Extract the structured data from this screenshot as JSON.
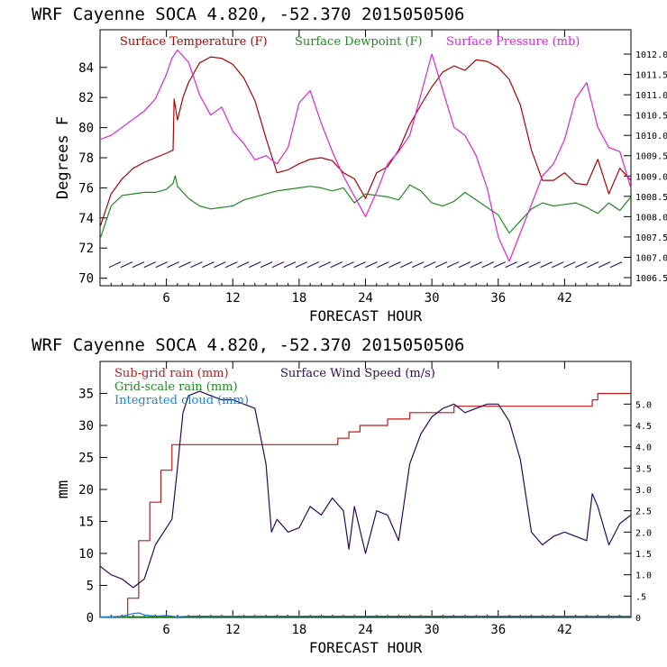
{
  "colors": {
    "temperature": "#b00000",
    "dewpoint": "#1e8a1e",
    "pressure": "#e020e0",
    "subgrid_rain": "#c01818",
    "gridscale_rain": "#1e8a1e",
    "cloud": "#1e7fd8",
    "wind": "#2a0a5a",
    "axis": "#000000"
  },
  "chart_data": [
    {
      "type": "line",
      "title": "WRF   Cayenne SOCA   4.820, -52.370  2015050506",
      "xlabel": "FORECAST HOUR",
      "ylabel": "Degrees F",
      "xlim": [
        0,
        48
      ],
      "ylim": [
        69.5,
        86.5
      ],
      "y2lim": [
        1006.3,
        1012.6
      ],
      "xticks": [
        6,
        12,
        18,
        24,
        30,
        36,
        42
      ],
      "xtick_labels": [
        "6",
        "12",
        "18",
        "24",
        "30",
        "36",
        "42"
      ],
      "yticks": [
        70,
        72,
        74,
        76,
        78,
        80,
        82,
        84
      ],
      "ytick_labels": [
        "70",
        "72",
        "74",
        "76",
        "78",
        "80",
        "82",
        "84"
      ],
      "y2ticks": [
        1006.5,
        1007.0,
        1007.5,
        1008.0,
        1008.5,
        1009.0,
        1009.5,
        1010.0,
        1010.5,
        1011.0,
        1011.5,
        1012.0
      ],
      "y2tick_labels": [
        "1006.5",
        "1007.0",
        "1007.5",
        "1008.0",
        "1008.5",
        "1009.0",
        "1009.5",
        "1010.0",
        "1010.5",
        "1011.0",
        "1011.5",
        "1012.0"
      ],
      "legend": [
        "Surface Temperature (F)",
        "Surface Dewpoint (F)",
        "Surface Pressure (mb)"
      ],
      "series": [
        {
          "name": "Surface Temperature (F)",
          "axis": "left",
          "x": [
            0,
            1,
            2,
            3,
            4,
            5,
            6,
            6.6,
            6.7,
            7,
            7.5,
            8,
            9,
            10,
            11,
            12,
            13,
            14,
            15,
            16,
            17,
            18,
            19,
            20,
            21,
            22,
            23,
            24,
            25,
            26,
            27,
            28,
            29,
            30,
            31,
            32,
            33,
            34,
            35,
            36,
            37,
            38,
            39,
            40,
            41,
            42,
            43,
            44,
            45,
            46,
            47,
            48
          ],
          "values": [
            73.4,
            75.6,
            76.6,
            77.3,
            77.7,
            78.0,
            78.3,
            78.5,
            81.9,
            80.5,
            82.0,
            83.0,
            84.3,
            84.7,
            84.6,
            84.2,
            83.3,
            81.8,
            79.3,
            77.0,
            77.2,
            77.6,
            77.9,
            78.0,
            77.8,
            77.0,
            76.6,
            75.3,
            77.0,
            77.4,
            78.5,
            80.2,
            81.5,
            82.7,
            83.7,
            84.1,
            83.8,
            84.5,
            84.4,
            84.0,
            83.2,
            81.5,
            78.5,
            76.5,
            76.5,
            77.0,
            76.3,
            76.2,
            77.9,
            75.6,
            77.3,
            76.5
          ]
        },
        {
          "name": "Surface Dewpoint (F)",
          "axis": "left",
          "x": [
            0,
            1,
            2,
            3,
            4,
            5,
            6,
            6.6,
            6.8,
            7,
            8,
            9,
            10,
            11,
            12,
            13,
            14,
            15,
            16,
            17,
            18,
            19,
            20,
            21,
            22,
            23,
            24,
            25,
            26,
            27,
            28,
            29,
            30,
            31,
            32,
            33,
            34,
            35,
            36,
            37,
            38,
            39,
            40,
            41,
            42,
            43,
            44,
            45,
            46,
            47,
            48
          ],
          "values": [
            72.6,
            74.8,
            75.5,
            75.6,
            75.7,
            75.7,
            75.9,
            76.3,
            76.8,
            76.1,
            75.3,
            74.8,
            74.6,
            74.7,
            74.8,
            75.2,
            75.4,
            75.6,
            75.8,
            75.9,
            76.0,
            76.1,
            76.0,
            75.8,
            76.0,
            75.0,
            75.6,
            75.5,
            75.4,
            75.2,
            76.2,
            75.8,
            75.0,
            74.8,
            75.1,
            75.7,
            75.2,
            74.7,
            74.2,
            73.0,
            73.8,
            74.6,
            75.0,
            74.8,
            74.9,
            75.0,
            74.7,
            74.3,
            75.0,
            74.5,
            75.4
          ]
        },
        {
          "name": "Surface Pressure (mb)",
          "axis": "right",
          "x": [
            0,
            1,
            2,
            3,
            4,
            5,
            6,
            6.5,
            7,
            8,
            9,
            10,
            11,
            12,
            13,
            14,
            15,
            16,
            17,
            18,
            19,
            20,
            21,
            22,
            23,
            24,
            25,
            26,
            27,
            28,
            29,
            30,
            31,
            32,
            33,
            34,
            35,
            36,
            37,
            38,
            39,
            40,
            41,
            42,
            43,
            44,
            45,
            46,
            47,
            48
          ],
          "values": [
            1009.9,
            1010.0,
            1010.2,
            1010.4,
            1010.6,
            1010.9,
            1011.5,
            1011.9,
            1012.1,
            1011.8,
            1011.0,
            1010.5,
            1010.7,
            1010.1,
            1009.8,
            1009.4,
            1009.5,
            1009.3,
            1009.7,
            1010.8,
            1011.1,
            1010.3,
            1009.6,
            1009.0,
            1008.5,
            1008.0,
            1008.6,
            1009.3,
            1009.6,
            1010.0,
            1011.0,
            1012.0,
            1011.1,
            1010.2,
            1010.0,
            1009.5,
            1008.7,
            1007.5,
            1006.9,
            1007.6,
            1008.3,
            1009.0,
            1009.3,
            1009.9,
            1010.9,
            1011.3,
            1010.2,
            1009.7,
            1009.6,
            1008.7
          ]
        }
      ],
      "wind_barbs": {
        "y": 70.9,
        "count": 44,
        "note": "wind barbs row near 71 F"
      }
    },
    {
      "type": "line",
      "title": "WRF   Cayenne SOCA   4.820, -52.370  2015050506",
      "xlabel": "FORECAST HOUR",
      "ylabel": "mm",
      "xlim": [
        0,
        48
      ],
      "ylim": [
        0,
        40
      ],
      "y2lim": [
        0,
        6
      ],
      "xticks": [
        6,
        12,
        18,
        24,
        30,
        36,
        42
      ],
      "xtick_labels": [
        "6",
        "12",
        "18",
        "24",
        "30",
        "36",
        "42"
      ],
      "yticks": [
        0,
        5,
        10,
        15,
        20,
        25,
        30,
        35
      ],
      "ytick_labels": [
        "0",
        "5",
        "10",
        "15",
        "20",
        "25",
        "30",
        "35"
      ],
      "y2ticks": [
        0,
        0.5,
        1.0,
        1.5,
        2.0,
        2.5,
        3.0,
        3.5,
        4.0,
        4.5,
        5.0
      ],
      "y2tick_labels": [
        "0",
        ".5",
        "1.0",
        "1.5",
        "2.0",
        "2.5",
        "3.0",
        "3.5",
        "4.0",
        "4.5",
        "5.0"
      ],
      "legend": [
        "Sub-grid rain (mm)",
        "Grid-scale rain (mm)",
        "Integrated cloud (mm)",
        "Surface Wind Speed (m/s)"
      ],
      "series": [
        {
          "name": "Sub-grid rain (mm)",
          "axis": "left",
          "step": true,
          "x": [
            0,
            1.5,
            2.5,
            3.5,
            4.5,
            5.5,
            6.5,
            7,
            8,
            10,
            12,
            14,
            16,
            18,
            20,
            21,
            21.5,
            22,
            22.5,
            23,
            23.5,
            24,
            26,
            27,
            28,
            30,
            32,
            34,
            36,
            38,
            40,
            42,
            44,
            44.5,
            45,
            48
          ],
          "values": [
            0,
            0,
            3,
            12,
            18,
            23,
            27,
            27,
            27,
            27,
            27,
            27,
            27,
            27,
            27,
            27,
            28,
            28,
            29,
            29,
            30,
            30,
            31,
            31,
            32,
            32,
            33,
            33,
            33,
            33,
            33,
            33,
            33,
            34,
            35,
            35
          ]
        },
        {
          "name": "Grid-scale rain (mm)",
          "axis": "left",
          "x": [
            0,
            48
          ],
          "values": [
            0.1,
            0.2
          ]
        },
        {
          "name": "Integrated cloud (mm)",
          "axis": "left",
          "x": [
            0,
            2,
            3,
            3.5,
            4,
            5,
            6,
            7,
            8,
            48
          ],
          "values": [
            0,
            0.2,
            0.6,
            0.7,
            0.4,
            0.2,
            0.3,
            0.1,
            0.2,
            0.2
          ]
        },
        {
          "name": "Surface Wind Speed (m/s)",
          "axis": "right",
          "x": [
            0,
            1,
            2,
            3,
            4,
            5,
            6,
            6.5,
            7,
            7.5,
            8,
            9,
            10,
            11,
            12,
            13,
            14,
            15,
            15.5,
            16,
            17,
            18,
            19,
            20,
            21,
            22,
            22.5,
            23,
            24,
            25,
            26,
            27,
            28,
            29,
            30,
            31,
            32,
            33,
            34,
            35,
            36,
            37,
            38,
            39,
            40,
            41,
            42,
            43,
            44,
            44.5,
            45,
            46,
            47,
            48
          ],
          "values": [
            1.2,
            1.0,
            0.9,
            0.7,
            0.9,
            1.7,
            2.1,
            2.3,
            3.5,
            4.8,
            5.2,
            5.3,
            5.2,
            5.1,
            5.1,
            5.0,
            4.9,
            3.6,
            2.0,
            2.3,
            2.0,
            2.1,
            2.6,
            2.4,
            2.8,
            2.5,
            1.6,
            2.6,
            1.5,
            2.5,
            2.4,
            1.8,
            3.6,
            4.3,
            4.7,
            4.9,
            5.0,
            4.8,
            4.9,
            5.0,
            5.0,
            4.6,
            3.7,
            2.0,
            1.7,
            1.9,
            2.0,
            1.9,
            1.8,
            2.9,
            2.6,
            1.7,
            2.2,
            2.4
          ]
        }
      ]
    }
  ]
}
